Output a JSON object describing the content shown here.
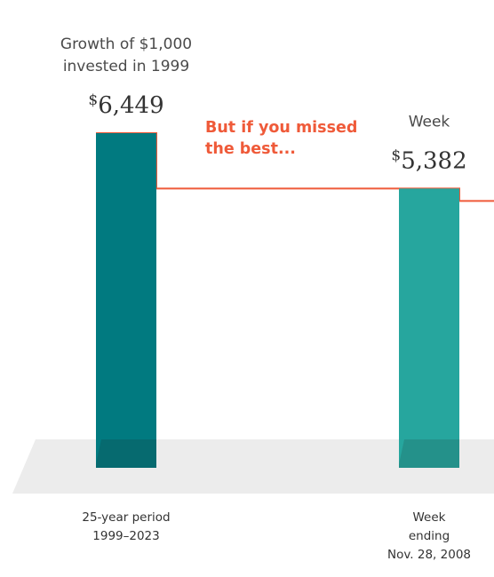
{
  "chart_data": {
    "type": "bar",
    "colors": {
      "bar_primary": "#017a80",
      "bar_secondary": "#26a69e",
      "bar_shadow": "#0b5c60",
      "bar_secondary_shadow": "#22807a",
      "floor": "#ececec",
      "step_line": "#ef5a39",
      "annotation": "#ef5a39"
    },
    "ylim": [
      0,
      6449
    ],
    "bars": [
      {
        "caption": [
          "Growth of $1,000",
          "invested in 1999"
        ],
        "value": 6449,
        "currency": "$",
        "value_text": "6,449",
        "category": [
          "25-year period",
          "1999–2023"
        ]
      },
      {
        "caption": [
          "Week"
        ],
        "value": 5382,
        "currency": "$",
        "value_text": "5,382",
        "category": [
          "Week",
          "ending",
          "Nov. 28, 2008"
        ]
      }
    ],
    "annotation": [
      "But if you missed",
      "the best..."
    ]
  }
}
